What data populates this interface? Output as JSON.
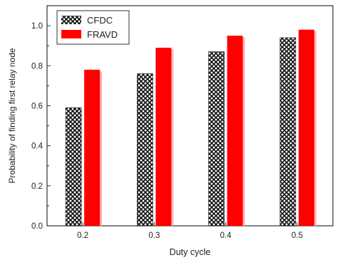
{
  "chart_data": {
    "type": "bar",
    "title": "",
    "xlabel": "Duty cycle",
    "ylabel": "Probability of  finding first relay node",
    "categories": [
      "0.2",
      "0.3",
      "0.4",
      "0.5"
    ],
    "series": [
      {
        "name": "CFDC",
        "values": [
          0.59,
          0.76,
          0.87,
          0.94
        ],
        "fill": "crosshatch-black"
      },
      {
        "name": "FRAVD",
        "values": [
          0.78,
          0.89,
          0.95,
          0.98
        ],
        "fill": "#ff0000"
      }
    ],
    "ylim": [
      0.0,
      1.1
    ],
    "yticks": [
      "0.0",
      "0.2",
      "0.4",
      "0.6",
      "0.8",
      "1.0"
    ],
    "legend_position": "top-left",
    "grid": false
  }
}
